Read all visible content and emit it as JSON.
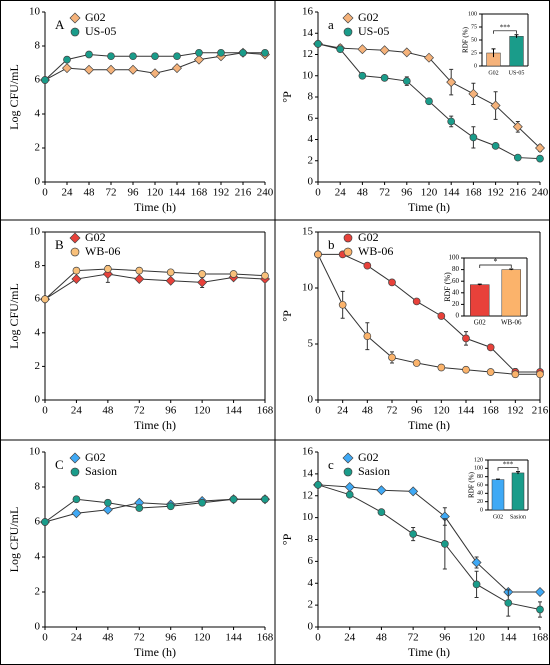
{
  "chart_data": [
    {
      "type": "line",
      "annotation": "A",
      "xlabel": "Time (h)",
      "ylabel": "Log CFU/mL",
      "x": [
        0,
        24,
        48,
        72,
        96,
        120,
        144,
        168,
        192,
        216,
        240
      ],
      "xlim": [
        0,
        240
      ],
      "xticks": [
        0,
        24,
        48,
        72,
        96,
        120,
        144,
        168,
        192,
        216,
        240
      ],
      "ylim": [
        0,
        10
      ],
      "yticks": [
        0,
        2,
        4,
        6,
        8,
        10
      ],
      "frame": false,
      "series": [
        {
          "name": "G02",
          "color": "#f5b27a",
          "marker": "diamond",
          "values": [
            6.0,
            6.7,
            6.6,
            6.6,
            6.6,
            6.4,
            6.7,
            7.2,
            7.4,
            7.6,
            7.5
          ]
        },
        {
          "name": "US-05",
          "color": "#1a9c8a",
          "marker": "circle",
          "values": [
            6.0,
            7.2,
            7.5,
            7.4,
            7.4,
            7.4,
            7.4,
            7.6,
            7.6,
            7.6,
            7.6
          ]
        }
      ]
    },
    {
      "type": "line",
      "annotation": "a",
      "xlabel": "Time (h)",
      "ylabel": "°P",
      "x": [
        0,
        24,
        48,
        72,
        96,
        120,
        144,
        168,
        192,
        216,
        240
      ],
      "xlim": [
        0,
        240
      ],
      "xticks": [
        0,
        24,
        48,
        72,
        96,
        120,
        144,
        168,
        192,
        216,
        240
      ],
      "ylim": [
        0,
        16
      ],
      "yticks": [
        0,
        2,
        4,
        6,
        8,
        10,
        12,
        14,
        16
      ],
      "frame": false,
      "series": [
        {
          "name": "G02",
          "color": "#f5b27a",
          "marker": "diamond",
          "values": [
            13.0,
            12.6,
            12.5,
            12.4,
            12.2,
            11.7,
            9.4,
            8.3,
            7.2,
            5.2,
            3.2
          ],
          "errors": [
            0,
            0.3,
            0,
            0,
            0,
            0,
            1.2,
            1.0,
            1.3,
            0.5,
            0.3
          ]
        },
        {
          "name": "US-05",
          "color": "#1a9c8a",
          "marker": "circle",
          "values": [
            13.0,
            12.5,
            10.0,
            9.8,
            9.5,
            7.6,
            5.7,
            4.2,
            3.4,
            2.3,
            2.2
          ],
          "errors": [
            0,
            0,
            0,
            0,
            0.4,
            0,
            0.5,
            1.0,
            0,
            0,
            0.2
          ]
        }
      ]
    },
    {
      "type": "line",
      "annotation": "B",
      "xlabel": "Time (h)",
      "ylabel": "Log CFU/mL",
      "x": [
        0,
        24,
        48,
        72,
        96,
        120,
        144,
        168
      ],
      "xlim": [
        0,
        168
      ],
      "xticks": [
        0,
        24,
        48,
        72,
        96,
        120,
        144,
        168
      ],
      "ylim": [
        0,
        10
      ],
      "yticks": [
        0,
        2,
        4,
        6,
        8,
        10
      ],
      "frame": true,
      "series": [
        {
          "name": "G02",
          "color": "#e8413a",
          "marker": "diamond",
          "values": [
            6.0,
            7.2,
            7.5,
            7.2,
            7.1,
            7.0,
            7.3,
            7.2
          ],
          "errors": [
            0,
            0,
            0.5,
            0,
            0,
            0.3,
            0,
            0
          ]
        },
        {
          "name": "WB-06",
          "color": "#f8c07a",
          "marker": "circle",
          "values": [
            6.0,
            7.7,
            7.8,
            7.7,
            7.6,
            7.5,
            7.5,
            7.4
          ]
        }
      ]
    },
    {
      "type": "line",
      "annotation": "b",
      "xlabel": "Time (h)",
      "ylabel": "°P",
      "x": [
        0,
        24,
        48,
        72,
        96,
        120,
        144,
        168,
        192,
        216
      ],
      "xlim": [
        0,
        216
      ],
      "xticks": [
        0,
        24,
        48,
        72,
        96,
        120,
        144,
        168,
        192,
        216
      ],
      "ylim": [
        0,
        15
      ],
      "yticks": [
        0,
        5,
        10,
        15
      ],
      "frame": true,
      "series": [
        {
          "name": "G02",
          "color": "#e8413a",
          "marker": "circle",
          "values": [
            13.0,
            13.0,
            12.0,
            10.5,
            8.8,
            7.5,
            5.5,
            4.7,
            2.5,
            2.5
          ],
          "errors": [
            0,
            0,
            0,
            0,
            0,
            0,
            0.6,
            0,
            0.3,
            0
          ]
        },
        {
          "name": "WB-06",
          "color": "#fbb36b",
          "marker": "circle",
          "values": [
            13.0,
            8.5,
            5.7,
            3.8,
            3.3,
            2.9,
            2.7,
            2.5,
            2.3,
            2.3
          ],
          "errors": [
            0,
            1.2,
            1.2,
            0.5,
            0,
            0,
            0,
            0,
            0,
            0
          ]
        }
      ]
    },
    {
      "type": "line",
      "annotation": "C",
      "xlabel": "Time (h)",
      "ylabel": "Log CFU/mL",
      "x": [
        0,
        24,
        48,
        72,
        96,
        120,
        144,
        168
      ],
      "xlim": [
        0,
        168
      ],
      "xticks": [
        0,
        24,
        48,
        72,
        96,
        120,
        144,
        168
      ],
      "ylim": [
        0,
        10
      ],
      "yticks": [
        0,
        2,
        4,
        6,
        8,
        10
      ],
      "frame": false,
      "series": [
        {
          "name": "G02",
          "color": "#3fa9f5",
          "marker": "diamond",
          "values": [
            6.0,
            6.5,
            6.7,
            7.1,
            7.0,
            7.2,
            7.3,
            7.3
          ]
        },
        {
          "name": "Sasion",
          "color": "#1a9c8a",
          "marker": "circle",
          "values": [
            6.0,
            7.3,
            7.1,
            6.8,
            6.9,
            7.1,
            7.3,
            7.3
          ]
        }
      ]
    },
    {
      "type": "line",
      "annotation": "c",
      "xlabel": "Time (h)",
      "ylabel": "°P",
      "x": [
        0,
        24,
        48,
        72,
        96,
        120,
        144,
        168
      ],
      "xlim": [
        0,
        168
      ],
      "xticks": [
        0,
        24,
        48,
        72,
        96,
        120,
        144,
        168
      ],
      "ylim": [
        0,
        16
      ],
      "yticks": [
        0,
        2,
        4,
        6,
        8,
        10,
        12,
        14,
        16
      ],
      "frame": false,
      "series": [
        {
          "name": "G02",
          "color": "#3fa9f5",
          "marker": "diamond",
          "values": [
            13.0,
            12.8,
            12.5,
            12.4,
            10.1,
            5.9,
            3.2,
            3.2
          ],
          "errors": [
            0,
            0,
            0,
            0,
            0.8,
            0.5,
            0,
            0
          ]
        },
        {
          "name": "Sasion",
          "color": "#1a9c8a",
          "marker": "circle",
          "values": [
            13.0,
            12.1,
            10.5,
            8.5,
            7.6,
            3.9,
            2.2,
            1.6
          ],
          "errors": [
            0,
            0,
            0,
            0.6,
            2.3,
            1.2,
            1.2,
            0.7
          ]
        }
      ]
    },
    {
      "type": "bar",
      "annotation": "***",
      "ylabel": "RDF (%)",
      "categories": [
        "G02",
        "US-05"
      ],
      "values": [
        25,
        57
      ],
      "errors": [
        8,
        3
      ],
      "colors": [
        "#f5b27a",
        "#1a9c8a"
      ],
      "ylim": [
        0,
        100
      ],
      "yticks": [
        0,
        25,
        50,
        75,
        100
      ],
      "frame": true
    },
    {
      "type": "bar",
      "annotation": "*",
      "ylabel": "RDF (%)",
      "categories": [
        "G02",
        "WB-06"
      ],
      "values": [
        54,
        80
      ],
      "errors": [
        1,
        1
      ],
      "colors": [
        "#e8413a",
        "#fbb36b"
      ],
      "ylim": [
        0,
        100
      ],
      "yticks": [
        0,
        20,
        40,
        60,
        80,
        100
      ],
      "frame": true
    },
    {
      "type": "bar",
      "annotation": "***",
      "ylabel": "RDF (%)",
      "categories": [
        "G02",
        "Sasion"
      ],
      "values": [
        73,
        89
      ],
      "errors": [
        1,
        3
      ],
      "colors": [
        "#3fa9f5",
        "#1a9c8a"
      ],
      "ylim": [
        0,
        120
      ],
      "yticks": [
        0,
        20,
        40,
        60,
        80,
        100,
        120
      ],
      "frame": true
    }
  ]
}
